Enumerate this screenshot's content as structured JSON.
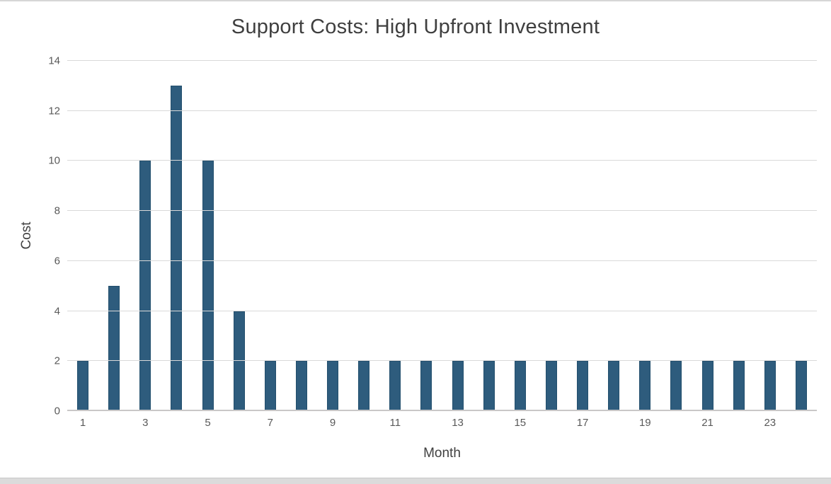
{
  "chart_data": {
    "type": "bar",
    "title": "Support Costs: High Upfront Investment",
    "xlabel": "Month",
    "ylabel": "Cost",
    "categories": [
      1,
      2,
      3,
      4,
      5,
      6,
      7,
      8,
      9,
      10,
      11,
      12,
      13,
      14,
      15,
      16,
      17,
      18,
      19,
      20,
      21,
      22,
      23,
      24
    ],
    "values": [
      2,
      5,
      10,
      13,
      10,
      4,
      2,
      2,
      2,
      2,
      2,
      2,
      2,
      2,
      2,
      2,
      2,
      2,
      2,
      2,
      2,
      2,
      2,
      2
    ],
    "yticks": [
      0,
      2,
      4,
      6,
      8,
      10,
      12,
      14
    ],
    "xticks_labeled": [
      1,
      3,
      5,
      7,
      9,
      11,
      13,
      15,
      17,
      19,
      21,
      23
    ],
    "ylim": [
      0,
      14
    ],
    "grid": true,
    "legend_position": "none",
    "colors": {
      "bar_fill": "#2e5c7d",
      "bar_border": "#234f6d",
      "gridline": "#d9d9d9",
      "axis_line": "#c9c7c7",
      "tick_label": "#595959",
      "title_text": "#3f3f3f",
      "axis_title_text": "#404040"
    }
  },
  "window": {
    "top_edge": "window-top-edge",
    "bottom_edge": "window-bottom-edge"
  }
}
